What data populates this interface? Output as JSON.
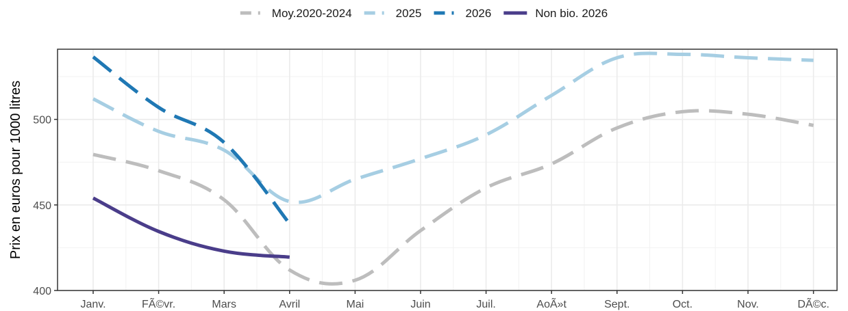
{
  "chart_data": {
    "type": "line",
    "title": "",
    "xlabel": "",
    "ylabel": "Prix en euros pour 1000 litres",
    "categories": [
      "Janv.",
      "FÃ©vr.",
      "Mars",
      "Avril",
      "Mai",
      "Juin",
      "Juil.",
      "AoÃ»t",
      "Sept.",
      "Oct.",
      "Nov.",
      "DÃ©c."
    ],
    "ylim": [
      400,
      541
    ],
    "yticks": [
      400,
      450,
      500
    ],
    "grid": true,
    "legend_position": "top",
    "series": [
      {
        "name": "Moy.2020-2024",
        "color": "#bdbdbd",
        "dash": "long-dash",
        "values": [
          479.5,
          470,
          453,
          412,
          406,
          435,
          460,
          474,
          495,
          504.5,
          503,
          496.5
        ]
      },
      {
        "name": "2025",
        "color": "#a6cee3",
        "dash": "long-dash",
        "values": [
          512,
          493,
          482,
          452,
          465,
          477,
          491,
          514,
          536,
          538,
          536,
          534.5
        ]
      },
      {
        "name": "2026",
        "color": "#1f78b4",
        "dash": "long-dash",
        "values": [
          536.5,
          507,
          486.5,
          439,
          null,
          null,
          null,
          null,
          null,
          null,
          null,
          null
        ]
      },
      {
        "name": "Non bio. 2026",
        "color": "#4a3d8a",
        "dash": "solid",
        "values": [
          454,
          434.5,
          423,
          419.5,
          null,
          null,
          null,
          null,
          null,
          null,
          null,
          null
        ]
      }
    ]
  }
}
